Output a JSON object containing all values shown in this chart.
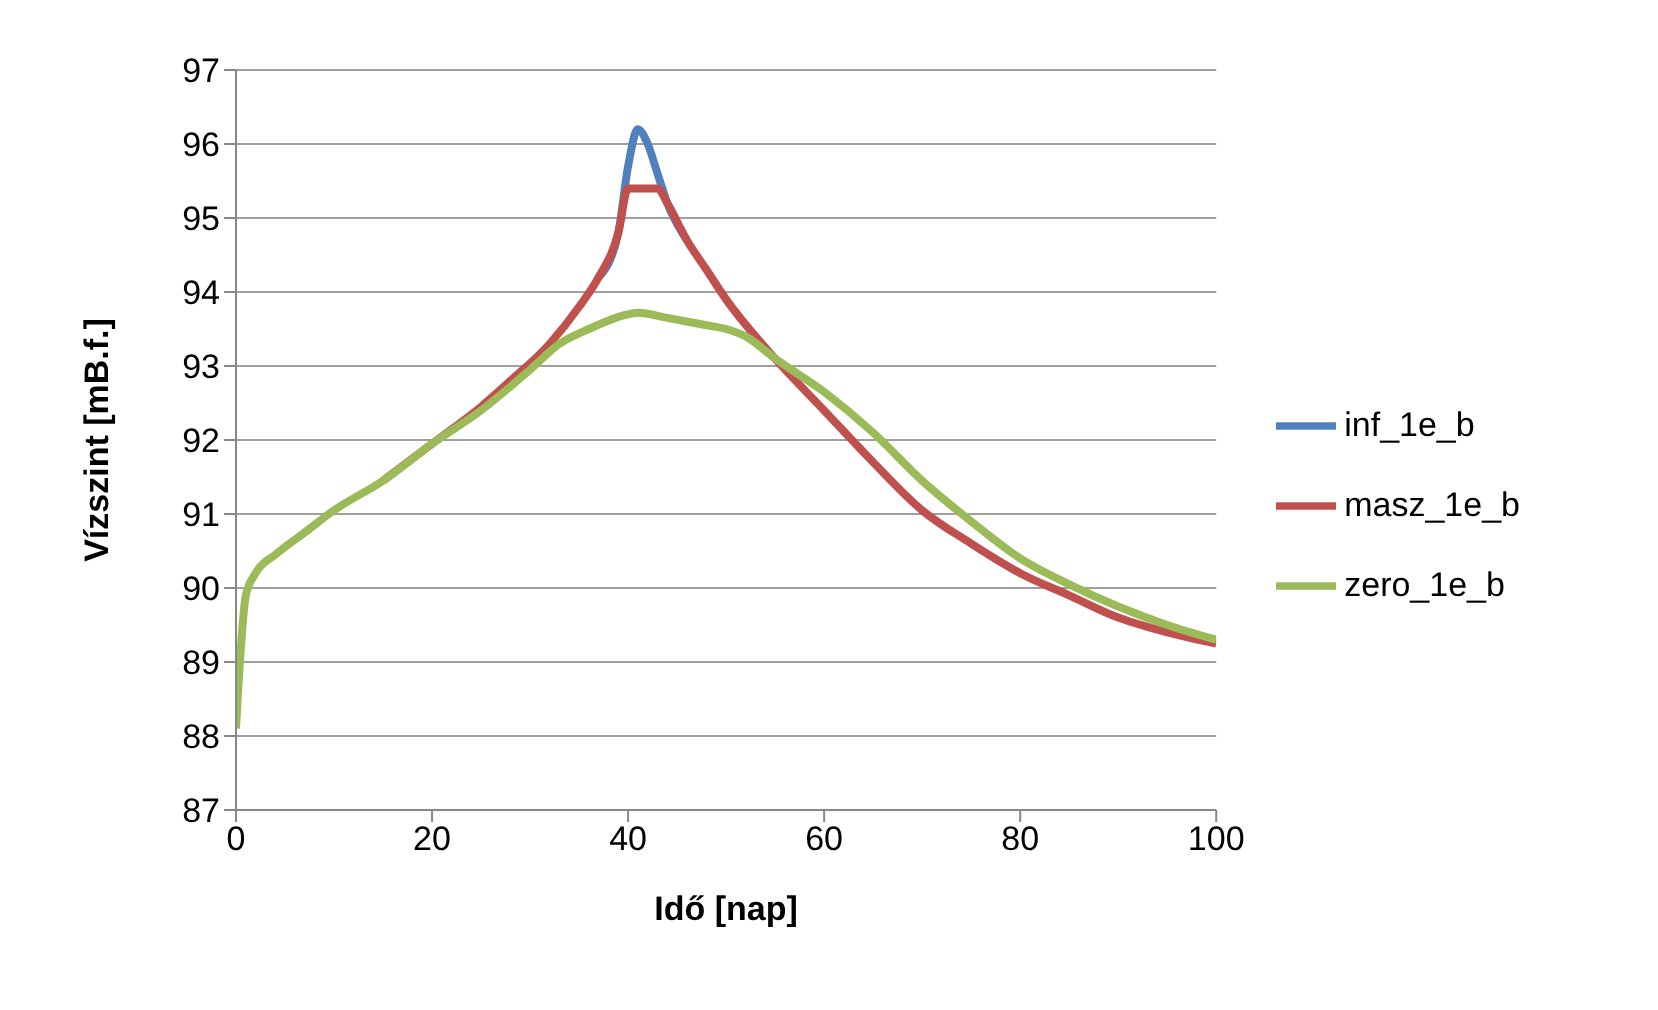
{
  "chart_data": {
    "type": "line",
    "xlabel": "Idő [nap]",
    "ylabel": "Vízszint [mB.f.]",
    "xlim": [
      0,
      100
    ],
    "xticks": [
      0,
      20,
      40,
      60,
      80,
      100
    ],
    "ylim": [
      87,
      97
    ],
    "yticks": [
      87,
      88,
      89,
      90,
      91,
      92,
      93,
      94,
      95,
      96,
      97
    ],
    "grid": "y",
    "legend": "right",
    "marker": "none",
    "line_style": "solid",
    "series": [
      {
        "name": "inf_1e_b",
        "color": "#4f81bd",
        "x": [
          37,
          39,
          40,
          41,
          42,
          43,
          44,
          46
        ],
        "values": [
          94.2,
          94.8,
          95.7,
          96.2,
          96.0,
          95.6,
          95.2,
          94.7
        ]
      },
      {
        "name": "masz_1e_b",
        "color": "#c0504d",
        "x": [
          15,
          20,
          25,
          28,
          32,
          35,
          37,
          39,
          40,
          41,
          43,
          44,
          46,
          48,
          50,
          55,
          60,
          65,
          70,
          75,
          80,
          85,
          90,
          95,
          100
        ],
        "values": [
          91.45,
          91.95,
          92.45,
          92.8,
          93.3,
          93.8,
          94.2,
          94.8,
          95.4,
          95.4,
          95.4,
          95.2,
          94.7,
          94.3,
          93.9,
          93.1,
          92.4,
          91.7,
          91.05,
          90.6,
          90.2,
          89.9,
          89.6,
          89.4,
          89.25
        ]
      },
      {
        "name": "zero_1e_b",
        "color": "#9bbb59",
        "x": [
          0,
          0.5,
          1,
          2,
          4,
          7,
          10,
          15,
          20,
          25,
          30,
          33,
          36,
          40,
          41,
          44,
          48,
          50,
          52,
          55,
          60,
          65,
          70,
          75,
          80,
          85,
          90,
          95,
          100
        ],
        "values": [
          88.1,
          89.2,
          89.9,
          90.2,
          90.45,
          90.75,
          91.05,
          91.45,
          91.95,
          92.4,
          92.95,
          93.3,
          93.5,
          93.7,
          93.72,
          93.65,
          93.55,
          93.5,
          93.4,
          93.1,
          92.65,
          92.1,
          91.45,
          90.9,
          90.4,
          90.05,
          89.75,
          89.5,
          89.3
        ]
      }
    ]
  }
}
